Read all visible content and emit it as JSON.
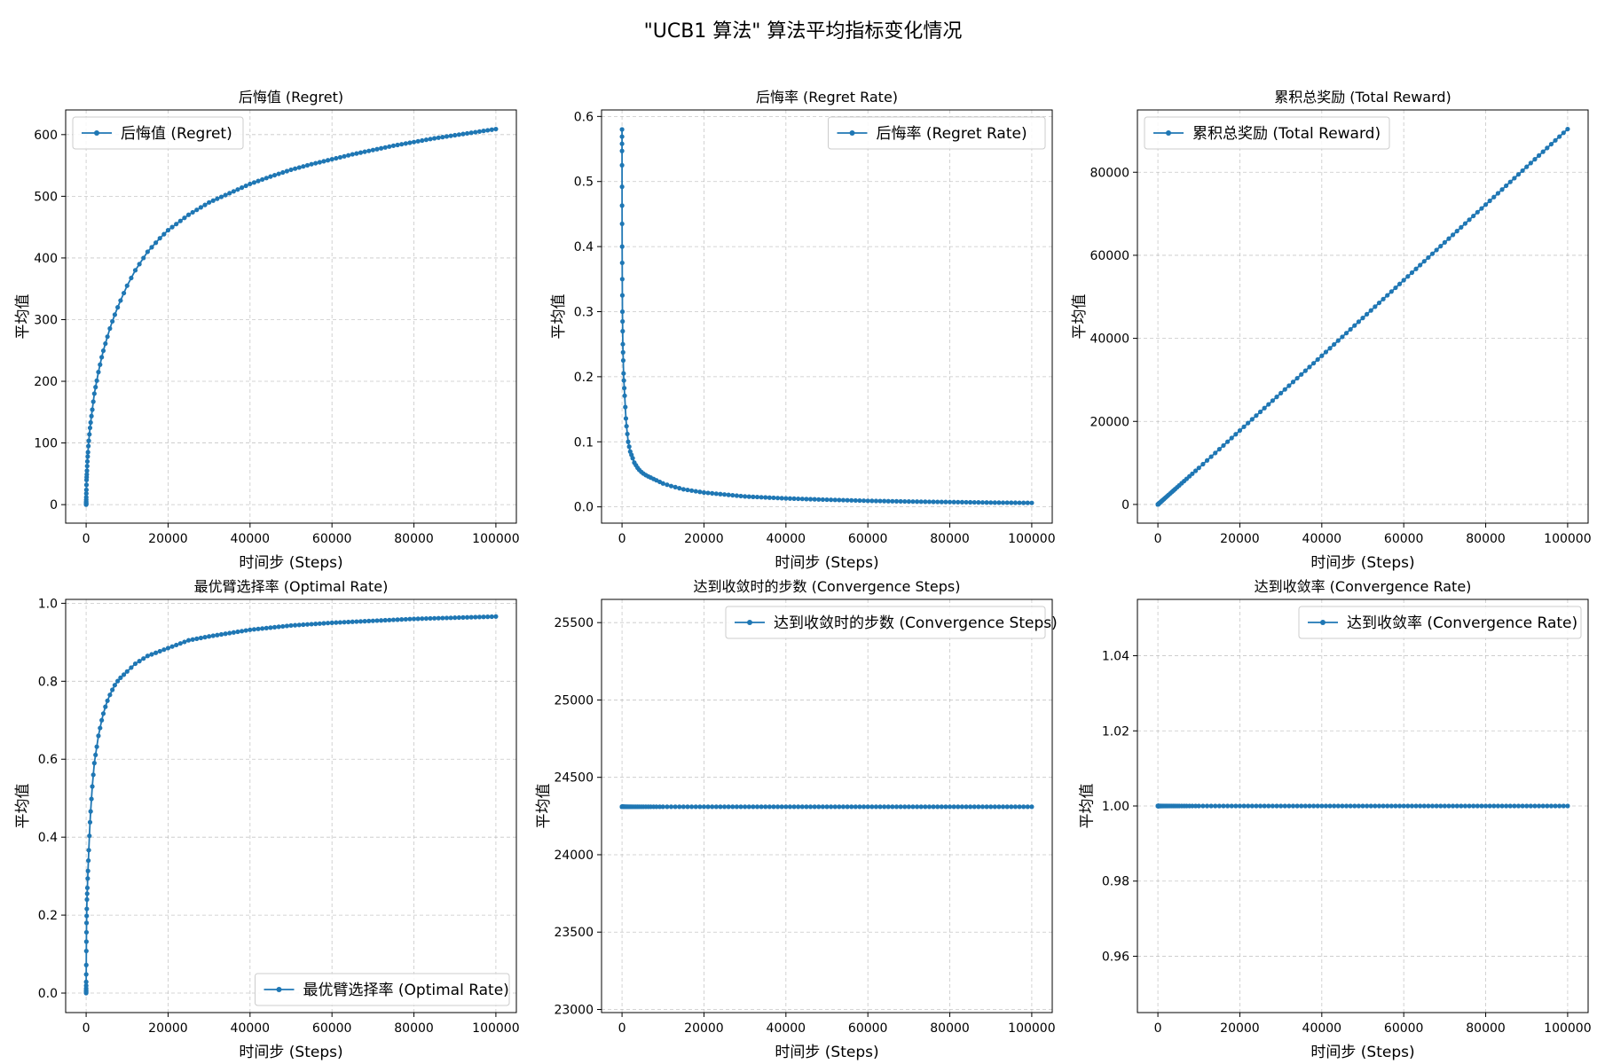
{
  "figure": {
    "title": "\"UCB1 算法\" 算法平均指标变化情况"
  },
  "colors": {
    "series": "#1f77b4",
    "grid": "#b0b0b0",
    "axes": "#000000"
  },
  "chart_data": [
    {
      "type": "line",
      "title": "后悔值 (Regret)",
      "xlabel": "时间步 (Steps)",
      "ylabel": "平均值",
      "xlim": [
        -5000,
        105000
      ],
      "ylim": [
        -30,
        640
      ],
      "xticks": [
        0,
        20000,
        40000,
        60000,
        80000,
        100000
      ],
      "yticks": [
        0,
        100,
        200,
        300,
        400,
        500,
        600
      ],
      "grid": true,
      "legend_position": "upper left",
      "series": [
        {
          "name": "后悔值 (Regret)",
          "x": [
            0,
            100,
            300,
            600,
            1000,
            2000,
            3000,
            4000,
            5000,
            6000,
            7000,
            8000,
            9000,
            10000,
            12000,
            15000,
            18000,
            20000,
            25000,
            30000,
            35000,
            40000,
            45000,
            50000,
            55000,
            60000,
            65000,
            70000,
            75000,
            80000,
            85000,
            90000,
            95000,
            100000
          ],
          "y": [
            0,
            40,
            70,
            100,
            128,
            180,
            215,
            245,
            268,
            290,
            308,
            325,
            340,
            355,
            380,
            410,
            432,
            445,
            470,
            490,
            505,
            520,
            532,
            543,
            552,
            560,
            568,
            575,
            582,
            588,
            594,
            599,
            604,
            609
          ]
        }
      ]
    },
    {
      "type": "line",
      "title": "后悔率 (Regret Rate)",
      "xlabel": "时间步 (Steps)",
      "ylabel": "平均值",
      "xlim": [
        -5000,
        105000
      ],
      "ylim": [
        -0.025,
        0.61
      ],
      "xticks": [
        0,
        20000,
        40000,
        60000,
        80000,
        100000
      ],
      "yticks": [
        0.0,
        0.1,
        0.2,
        0.3,
        0.4,
        0.5,
        0.6
      ],
      "grid": true,
      "legend_position": "upper right",
      "series": [
        {
          "name": "后悔率 (Regret Rate)",
          "x": [
            0,
            10,
            30,
            60,
            100,
            200,
            400,
            700,
            1000,
            1500,
            2000,
            3000,
            4000,
            5000,
            6000,
            8000,
            10000,
            12000,
            15000,
            20000,
            25000,
            30000,
            40000,
            50000,
            60000,
            70000,
            80000,
            90000,
            100000
          ],
          "y": [
            0.58,
            0.47,
            0.4,
            0.35,
            0.3,
            0.25,
            0.2,
            0.165,
            0.13,
            0.1,
            0.085,
            0.068,
            0.058,
            0.052,
            0.048,
            0.042,
            0.036,
            0.032,
            0.027,
            0.022,
            0.019,
            0.016,
            0.013,
            0.011,
            0.0093,
            0.0082,
            0.0074,
            0.0066,
            0.0061
          ]
        }
      ]
    },
    {
      "type": "line",
      "title": "累积总奖励 (Total Reward)",
      "xlabel": "时间步 (Steps)",
      "ylabel": "平均值",
      "xlim": [
        -5000,
        105000
      ],
      "ylim": [
        -4500,
        95000
      ],
      "xticks": [
        0,
        20000,
        40000,
        60000,
        80000,
        100000
      ],
      "yticks": [
        0,
        20000,
        40000,
        60000,
        80000
      ],
      "grid": true,
      "legend_position": "upper left",
      "series": [
        {
          "name": "累积总奖励 (Total Reward)",
          "x": [
            0,
            10000,
            20000,
            30000,
            40000,
            50000,
            60000,
            70000,
            80000,
            90000,
            100000
          ],
          "y": [
            0,
            8800,
            17800,
            26800,
            35800,
            44900,
            54000,
            63100,
            72200,
            81300,
            90400
          ]
        }
      ]
    },
    {
      "type": "line",
      "title": "最优臂选择率 (Optimal Rate)",
      "xlabel": "时间步 (Steps)",
      "ylabel": "平均值",
      "xlim": [
        -5000,
        105000
      ],
      "ylim": [
        -0.05,
        1.01
      ],
      "xticks": [
        0,
        20000,
        40000,
        60000,
        80000,
        100000
      ],
      "yticks": [
        0.0,
        0.2,
        0.4,
        0.6,
        0.8,
        1.0
      ],
      "grid": true,
      "legend_position": "lower right",
      "series": [
        {
          "name": "最优臂选择率 (Optimal Rate)",
          "x": [
            0,
            50,
            100,
            200,
            400,
            700,
            1000,
            1500,
            2000,
            3000,
            4000,
            5000,
            6000,
            7000,
            8000,
            10000,
            12000,
            15000,
            20000,
            25000,
            30000,
            40000,
            50000,
            60000,
            70000,
            80000,
            90000,
            100000
          ],
          "y": [
            0.0,
            0.12,
            0.18,
            0.24,
            0.3,
            0.38,
            0.45,
            0.53,
            0.59,
            0.66,
            0.71,
            0.745,
            0.77,
            0.79,
            0.805,
            0.825,
            0.845,
            0.865,
            0.885,
            0.905,
            0.915,
            0.932,
            0.943,
            0.95,
            0.955,
            0.96,
            0.963,
            0.966
          ]
        }
      ]
    },
    {
      "type": "line",
      "title": "达到收敛时的步数 (Convergence Steps)",
      "xlabel": "时间步 (Steps)",
      "ylabel": "平均值",
      "xlim": [
        -5000,
        105000
      ],
      "ylim": [
        22980,
        25650
      ],
      "xticks": [
        0,
        20000,
        40000,
        60000,
        80000,
        100000
      ],
      "yticks": [
        23000,
        23500,
        24000,
        24500,
        25000,
        25500
      ],
      "grid": true,
      "legend_position": "upper right",
      "series": [
        {
          "name": "达到收敛时的步数 (Convergence Steps)",
          "x": [
            0,
            100000
          ],
          "y": [
            24310,
            24310
          ]
        }
      ]
    },
    {
      "type": "line",
      "title": "达到收敛率 (Convergence Rate)",
      "xlabel": "时间步 (Steps)",
      "ylabel": "平均值",
      "xlim": [
        -5000,
        105000
      ],
      "ylim": [
        0.945,
        1.055
      ],
      "xticks": [
        0,
        20000,
        40000,
        60000,
        80000,
        100000
      ],
      "yticks": [
        0.96,
        0.98,
        1.0,
        1.02,
        1.04
      ],
      "grid": true,
      "legend_position": "upper right",
      "series": [
        {
          "name": "达到收敛率 (Convergence Rate)",
          "x": [
            0,
            100000
          ],
          "y": [
            1.0,
            1.0
          ]
        }
      ]
    }
  ]
}
